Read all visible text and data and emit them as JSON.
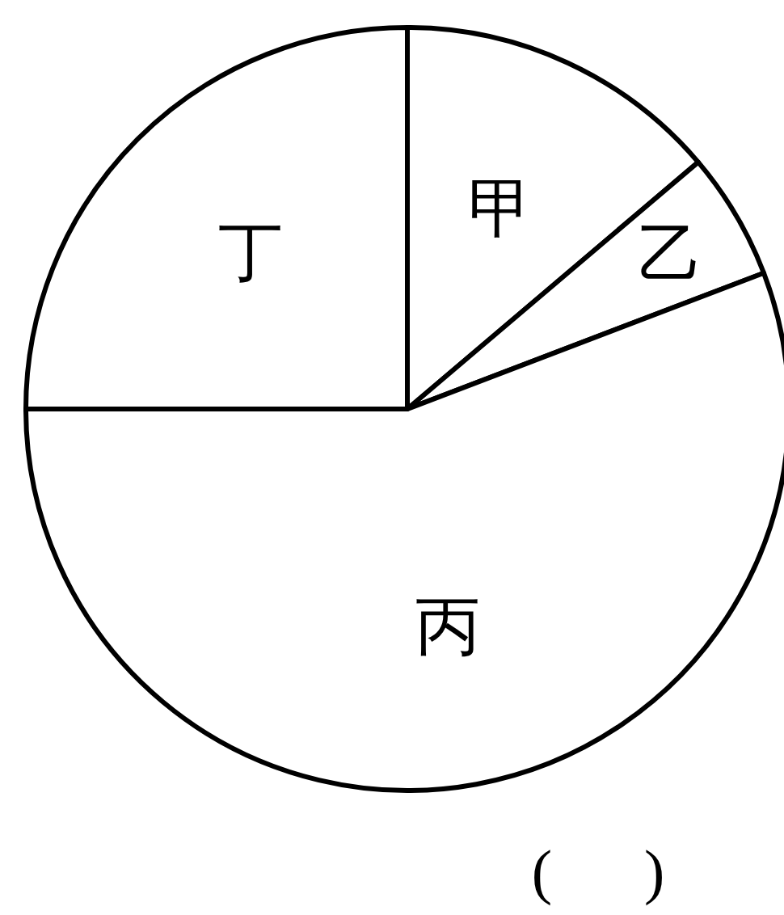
{
  "chart_data": {
    "type": "pie",
    "categories": [
      "甲",
      "乙",
      "丙",
      "丁"
    ],
    "values": [
      13.8,
      5.4,
      55.8,
      25
    ],
    "colors": [
      "#ffffff",
      "#ffffff",
      "#ffffff",
      "#ffffff"
    ],
    "annotations": [
      "(      )"
    ]
  }
}
